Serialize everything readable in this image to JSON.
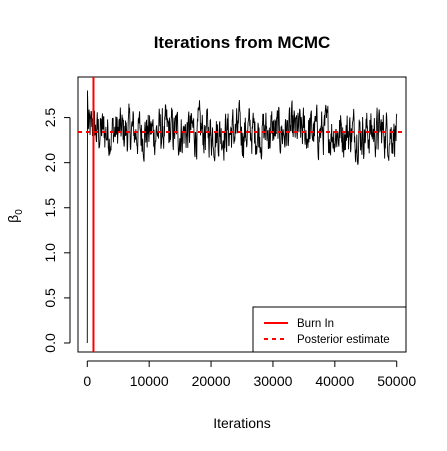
{
  "chart_data": {
    "type": "line",
    "title": "Iterations from MCMC",
    "xlabel": "Iterations",
    "ylabel": "β",
    "ylabel_subscript": "0",
    "xlim": [
      -1500,
      51500
    ],
    "ylim": [
      -0.1,
      2.95
    ],
    "x_ticks": [
      0,
      10000,
      20000,
      30000,
      40000,
      50000
    ],
    "x_tick_labels": [
      "0",
      "10000",
      "20000",
      "30000",
      "40000",
      "50000"
    ],
    "y_ticks": [
      0.0,
      0.5,
      1.0,
      1.5,
      2.0,
      2.5
    ],
    "y_tick_labels": [
      "0.0",
      "0.5",
      "1.0",
      "1.5",
      "2.0",
      "2.5"
    ],
    "series": [
      {
        "x_start": 0,
        "x_end": 50000,
        "initial_values": [
          0.0,
          2.8
        ],
        "mean": 2.34,
        "min": 1.97,
        "max": 2.7,
        "color": "#000000"
      }
    ],
    "burn_in_x": 1000,
    "posterior_estimate": 2.34,
    "legend": {
      "position": "bottom-right",
      "entries": [
        {
          "label": "Burn In",
          "color": "#ff0000",
          "style": "solid"
        },
        {
          "label": "Posterior estimate",
          "color": "#ff0000",
          "style": "dashed"
        }
      ]
    }
  }
}
